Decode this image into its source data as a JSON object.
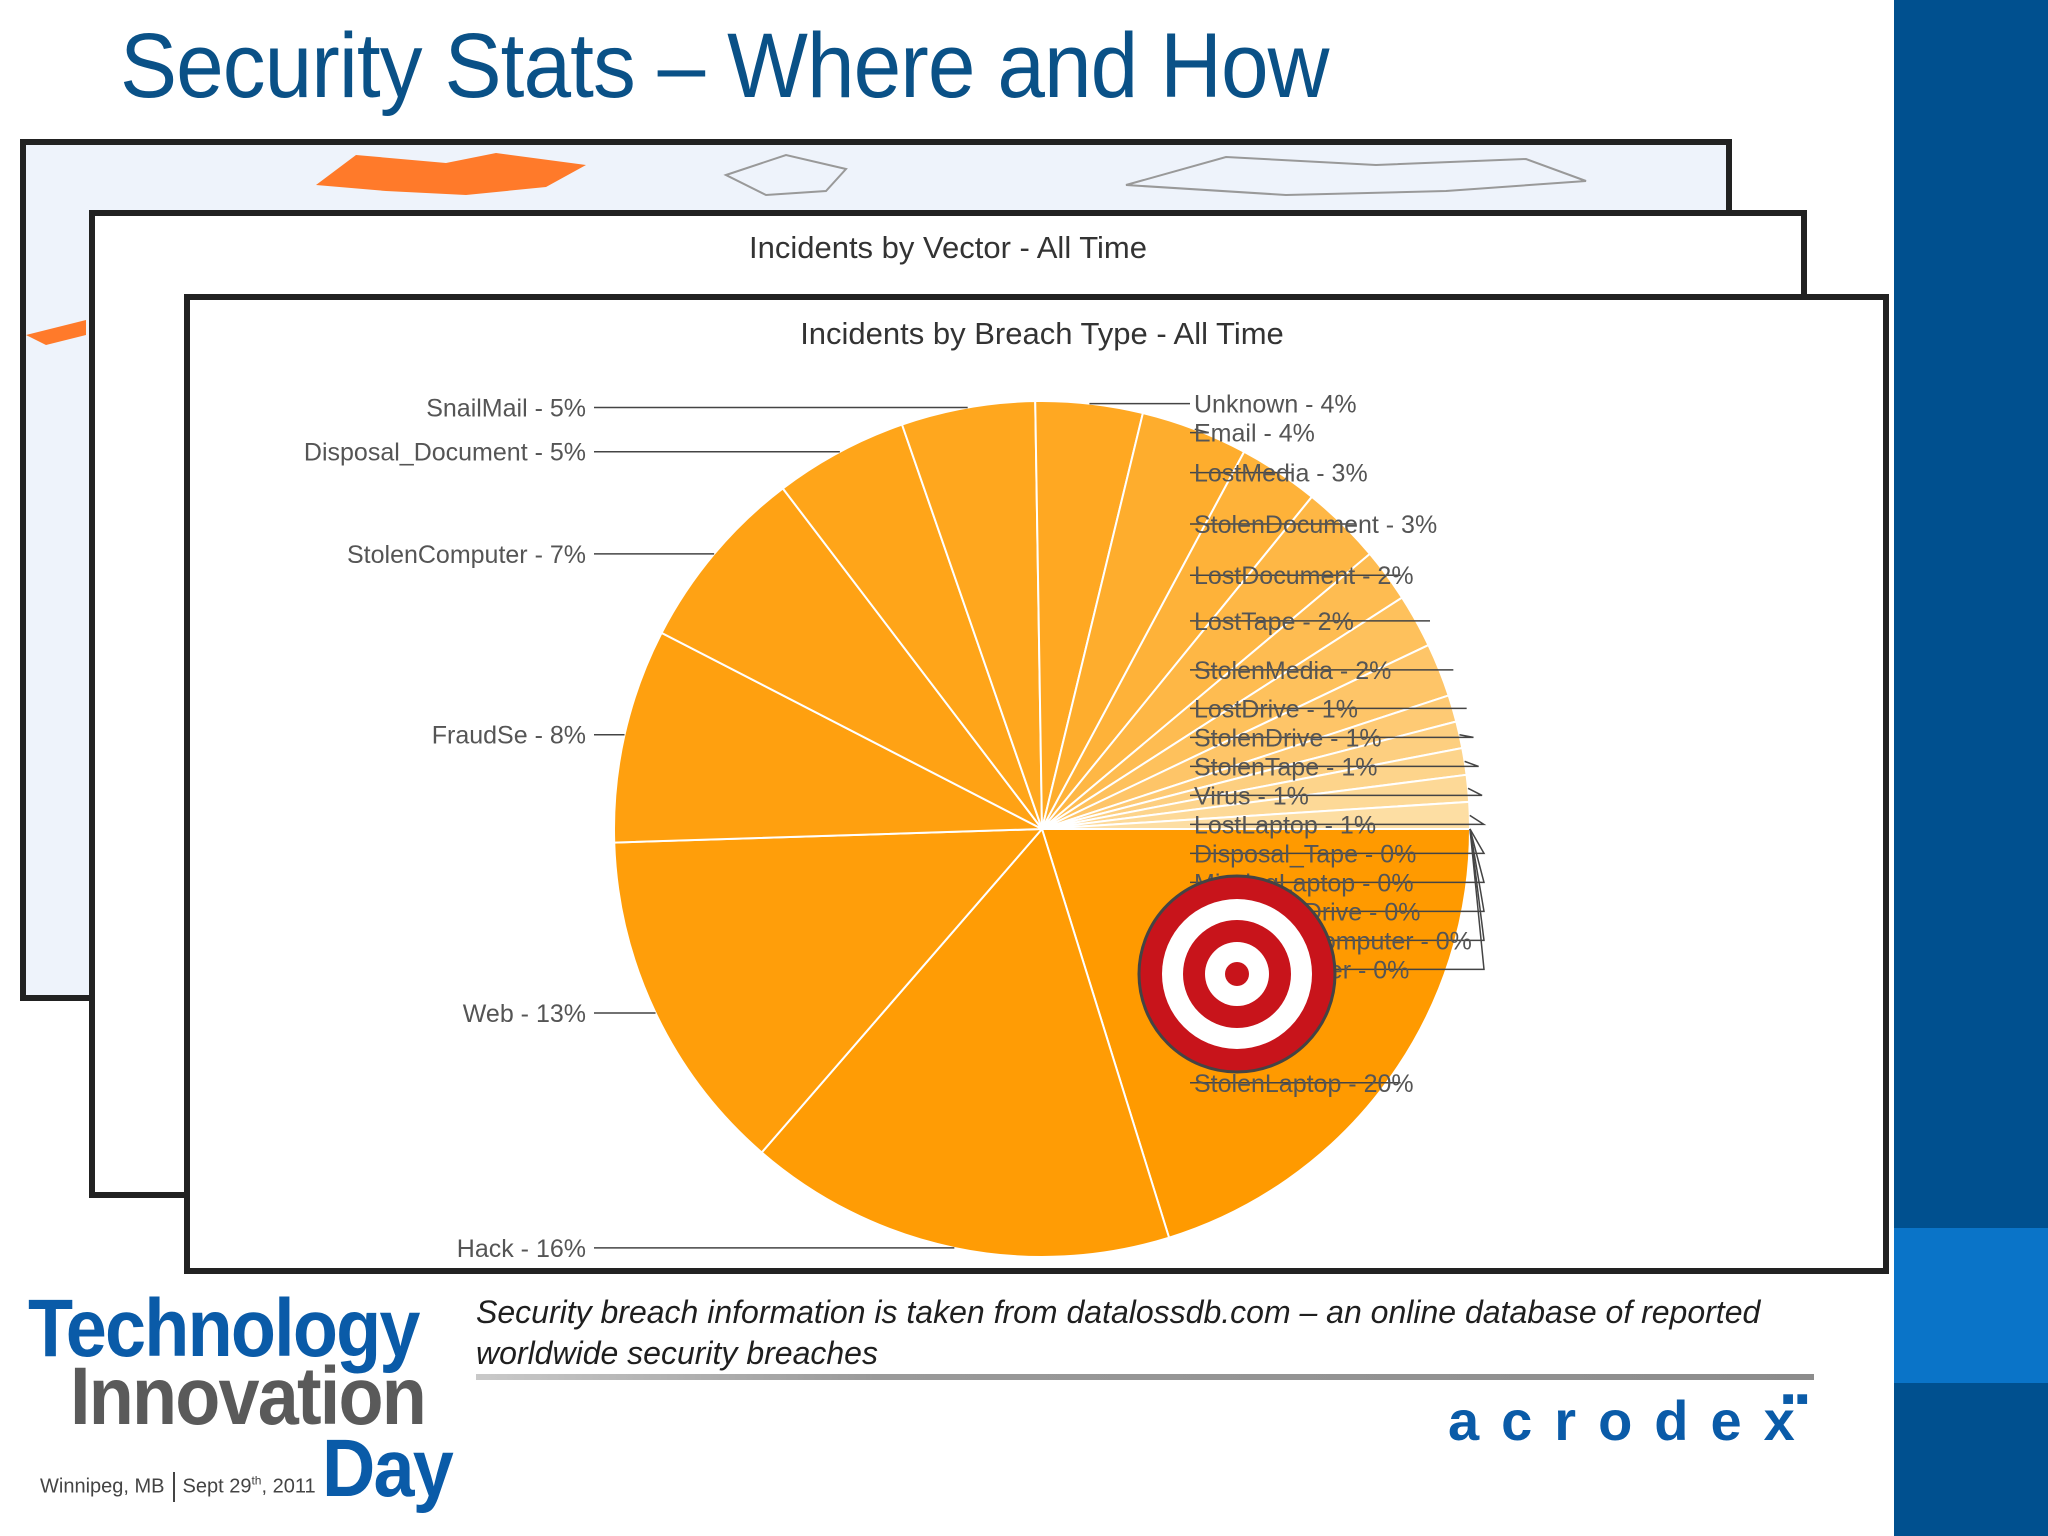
{
  "slide": {
    "title": "Security Stats – Where and How",
    "caption": "Security breach information is taken from datalossdb.com – an online database of reported worldwide security breaches",
    "colors": {
      "title": "#0a5187",
      "sidebar": "#00508f",
      "sidebar_accent": "#0a74c8",
      "slice_base": "#ff9a00"
    }
  },
  "vector_panel": {
    "title": "Incidents by Vector - All Time"
  },
  "chart_data": {
    "type": "pie",
    "title": "Incidents by Breach Type - All Time",
    "slices": [
      {
        "label": "StolenLaptop - 20%",
        "name": "StolenLaptop",
        "value": 20
      },
      {
        "label": "Hack - 16%",
        "name": "Hack",
        "value": 16
      },
      {
        "label": "Web - 13%",
        "name": "Web",
        "value": 13
      },
      {
        "label": "FraudSe - 8%",
        "name": "FraudSe",
        "value": 8
      },
      {
        "label": "StolenComputer - 7%",
        "name": "StolenComputer",
        "value": 7
      },
      {
        "label": "Disposal_Document - 5%",
        "name": "Disposal_Document",
        "value": 5
      },
      {
        "label": "SnailMail - 5%",
        "name": "SnailMail",
        "value": 5
      },
      {
        "label": "Unknown - 4%",
        "name": "Unknown",
        "value": 4
      },
      {
        "label": "Email - 4%",
        "name": "Email",
        "value": 4
      },
      {
        "label": "LostMedia - 3%",
        "name": "LostMedia",
        "value": 3
      },
      {
        "label": "StolenDocument - 3%",
        "name": "StolenDocument",
        "value": 3
      },
      {
        "label": "LostDocument - 2%",
        "name": "LostDocument",
        "value": 2
      },
      {
        "label": "LostTape - 2%",
        "name": "LostTape",
        "value": 2
      },
      {
        "label": "StolenMedia - 2%",
        "name": "StolenMedia",
        "value": 2
      },
      {
        "label": "LostDrive - 1%",
        "name": "LostDrive",
        "value": 1
      },
      {
        "label": "StolenDrive - 1%",
        "name": "StolenDrive",
        "value": 1
      },
      {
        "label": "StolenTape - 1%",
        "name": "StolenTape",
        "value": 1
      },
      {
        "label": "Virus - 1%",
        "name": "Virus",
        "value": 1
      },
      {
        "label": "LostLaptop - 1%",
        "name": "LostLaptop",
        "value": 1
      },
      {
        "label": "Disposal_Tape - 0%",
        "name": "Disposal_Tape",
        "value": 0
      },
      {
        "label": "MissingLaptop - 0%",
        "name": "MissingLaptop",
        "value": 0
      },
      {
        "label": "Disposal_Drive - 0%",
        "name": "Disposal_Drive",
        "value": 0
      },
      {
        "label": "Disposal_Computer - 0%",
        "name": "Disposal_Computer",
        "value": 0
      },
      {
        "label": "LostComputer - 0%",
        "name": "LostComputer",
        "value": 0
      }
    ],
    "legend": "none",
    "grid": false,
    "annotation_icon": "bullseye-target-icon"
  },
  "logo": {
    "line1": "Technology",
    "line2": "Innovation",
    "line3": "Day",
    "location": "Winnipeg, MB",
    "date_prefix": "Sept 29",
    "date_suffix": "th",
    "year": ", 2011"
  },
  "brand": {
    "name": "acrodex"
  }
}
